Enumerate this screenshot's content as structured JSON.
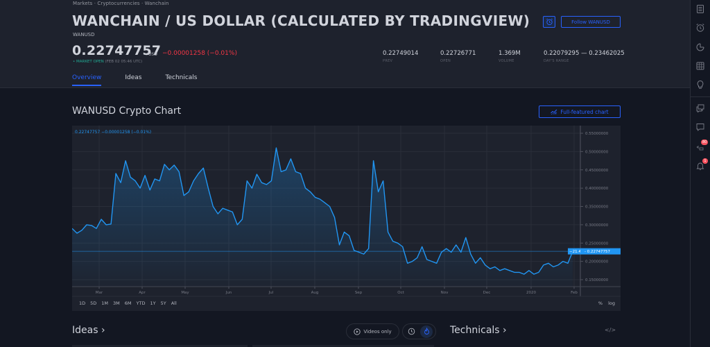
{
  "breadcrumb": [
    "Markets",
    "Cryptocurrencies",
    "Wanchain"
  ],
  "breadcrumb_text": "Markets · Cryptocurrencies · Wanchain",
  "title": "WANCHAIN / US DOLLAR (CALCULATED BY TRADINGVIEW)",
  "ticker": "WANUSD",
  "quote": {
    "price": "0.22747757",
    "currency": "USD",
    "change": "−0.00001258 (−0.01%)",
    "status_label": "• MARKET OPEN",
    "status_time": "(FEB 02 05:46 UTC)"
  },
  "stats": [
    {
      "value": "0.22749014",
      "label": "PREV"
    },
    {
      "value": "0.22726771",
      "label": "OPEN"
    },
    {
      "value": "1.369M",
      "label": "VOLUME"
    },
    {
      "value": "0.22079295 — 0.23462025",
      "label": "DAY'S RANGE"
    }
  ],
  "actions": {
    "follow_label": "Follow WANUSD"
  },
  "tabs": [
    {
      "label": "Overview",
      "active": true
    },
    {
      "label": "Ideas",
      "active": false
    },
    {
      "label": "Technicals",
      "active": false
    }
  ],
  "chart_section": {
    "title": "WANUSD Crypto Chart",
    "full_chart_label": "Full-featured chart",
    "legend": "0.22747757  −0.00001258 (−0.01%)",
    "last_price_label": "0.22747757",
    "last_pct_label": "−21.45%",
    "range_buttons": [
      "1D",
      "5D",
      "1M",
      "3M",
      "6M",
      "YTD",
      "1Y",
      "5Y",
      "All"
    ],
    "scale_buttons": [
      "%",
      "log"
    ]
  },
  "chart_data": {
    "type": "area",
    "title": "WANUSD Crypto Chart",
    "xlabel": "",
    "ylabel": "",
    "x_ticks": [
      "Mar",
      "Apr",
      "May",
      "Jun",
      "Jul",
      "Aug",
      "Sep",
      "Oct",
      "Nov",
      "Dec",
      "2020",
      "Feb"
    ],
    "y_ticks": [
      "0.55000000",
      "0.50000000",
      "0.45000000",
      "0.40000000",
      "0.35000000",
      "0.30000000",
      "0.25000000",
      "0.20000000",
      "0.15000000"
    ],
    "ylim": [
      0.13,
      0.57
    ],
    "grid": true,
    "color": "#2196f3",
    "last_value": 0.22747757,
    "series": [
      {
        "name": "WANUSD",
        "points": [
          [
            "Feb 10",
            0.29
          ],
          [
            "Feb 15",
            0.277
          ],
          [
            "Feb 20",
            0.285
          ],
          [
            "Feb 25",
            0.3
          ],
          [
            "Mar 1",
            0.298
          ],
          [
            "Mar 5",
            0.29
          ],
          [
            "Mar 8",
            0.315
          ],
          [
            "Mar 12",
            0.3
          ],
          [
            "Mar 16",
            0.302
          ],
          [
            "Mar 20",
            0.44
          ],
          [
            "Mar 23",
            0.415
          ],
          [
            "Mar 27",
            0.475
          ],
          [
            "Mar 31",
            0.43
          ],
          [
            "Apr 4",
            0.42
          ],
          [
            "Apr 8",
            0.4
          ],
          [
            "Apr 10",
            0.435
          ],
          [
            "Apr 13",
            0.395
          ],
          [
            "Apr 16",
            0.425
          ],
          [
            "Apr 20",
            0.42
          ],
          [
            "Apr 25",
            0.465
          ],
          [
            "Apr 28",
            0.45
          ],
          [
            "May 2",
            0.463
          ],
          [
            "May 6",
            0.445
          ],
          [
            "May 10",
            0.38
          ],
          [
            "May 14",
            0.39
          ],
          [
            "May 18",
            0.42
          ],
          [
            "May 21",
            0.44
          ],
          [
            "May 25",
            0.455
          ],
          [
            "May 28",
            0.4
          ],
          [
            "Jun 1",
            0.35
          ],
          [
            "Jun 5",
            0.33
          ],
          [
            "Jun 9",
            0.345
          ],
          [
            "Jun 13",
            0.34
          ],
          [
            "Jun 16",
            0.335
          ],
          [
            "Jun 20",
            0.3
          ],
          [
            "Jun 22",
            0.315
          ],
          [
            "Jun 25",
            0.42
          ],
          [
            "Jun 29",
            0.4
          ],
          [
            "Jul 2",
            0.438
          ],
          [
            "Jul 5",
            0.415
          ],
          [
            "Jul 9",
            0.41
          ],
          [
            "Jul 12",
            0.42
          ],
          [
            "Jul 14",
            0.51
          ],
          [
            "Jul 16",
            0.445
          ],
          [
            "Jul 20",
            0.45
          ],
          [
            "Jul 24",
            0.48
          ],
          [
            "Jul 27",
            0.445
          ],
          [
            "Jul 30",
            0.44
          ],
          [
            "Aug 2",
            0.4
          ],
          [
            "Aug 6",
            0.39
          ],
          [
            "Aug 10",
            0.375
          ],
          [
            "Aug 13",
            0.37
          ],
          [
            "Aug 16",
            0.36
          ],
          [
            "Aug 20",
            0.35
          ],
          [
            "Aug 24",
            0.32
          ],
          [
            "Aug 27",
            0.245
          ],
          [
            "Aug 31",
            0.28
          ],
          [
            "Sep 3",
            0.27
          ],
          [
            "Sep 7",
            0.23
          ],
          [
            "Sep 9",
            0.225
          ],
          [
            "Sep 13",
            0.22
          ],
          [
            "Sep 16",
            0.235
          ],
          [
            "Sep 18",
            0.475
          ],
          [
            "Sep 20",
            0.39
          ],
          [
            "Sep 23",
            0.42
          ],
          [
            "Sep 26",
            0.28
          ],
          [
            "Sep 30",
            0.255
          ],
          [
            "Oct 3",
            0.25
          ],
          [
            "Oct 6",
            0.24
          ],
          [
            "Oct 9",
            0.195
          ],
          [
            "Oct 12",
            0.2
          ],
          [
            "Oct 16",
            0.21
          ],
          [
            "Oct 19",
            0.24
          ],
          [
            "Oct 22",
            0.205
          ],
          [
            "Oct 25",
            0.2
          ],
          [
            "Oct 28",
            0.195
          ],
          [
            "Nov 1",
            0.225
          ],
          [
            "Nov 4",
            0.235
          ],
          [
            "Nov 7",
            0.225
          ],
          [
            "Nov 10",
            0.245
          ],
          [
            "Nov 14",
            0.225
          ],
          [
            "Nov 17",
            0.265
          ],
          [
            "Nov 20",
            0.22
          ],
          [
            "Nov 24",
            0.195
          ],
          [
            "Nov 28",
            0.21
          ],
          [
            "Dec 2",
            0.19
          ],
          [
            "Dec 6",
            0.18
          ],
          [
            "Dec 10",
            0.185
          ],
          [
            "Dec 14",
            0.175
          ],
          [
            "Dec 18",
            0.18
          ],
          [
            "Dec 22",
            0.175
          ],
          [
            "Dec 26",
            0.17
          ],
          [
            "Dec 30",
            0.17
          ],
          [
            "Jan 3",
            0.165
          ],
          [
            "Jan 6",
            0.175
          ],
          [
            "Jan 10",
            0.165
          ],
          [
            "Jan 14",
            0.17
          ],
          [
            "Jan 17",
            0.19
          ],
          [
            "Jan 20",
            0.195
          ],
          [
            "Jan 23",
            0.185
          ],
          [
            "Jan 26",
            0.19
          ],
          [
            "Jan 29",
            0.2
          ],
          [
            "Feb 1",
            0.195
          ],
          [
            "Feb 2",
            0.2275
          ]
        ]
      }
    ]
  },
  "ideas_section": {
    "title": "Ideas ›",
    "videos_only_label": "Videos only"
  },
  "technicals_section": {
    "title": "Technicals ›"
  },
  "right_toolbar": {
    "icons": [
      "watchlist-icon",
      "alert-clock-icon",
      "data-window-icon",
      "calendar-icon",
      "ideas-stream-icon",
      "chats-icon",
      "private-chat-icon",
      "streams-icon",
      "notifications-icon"
    ],
    "streams_badge": "80",
    "notifications_badge": "1"
  }
}
